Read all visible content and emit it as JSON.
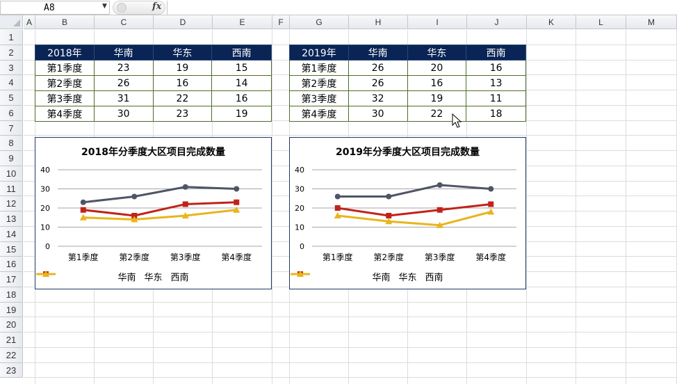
{
  "formula_bar": {
    "cell_ref": "A8",
    "fx": "fx",
    "content": ""
  },
  "columns": [
    "A",
    "B",
    "C",
    "D",
    "E",
    "F",
    "G",
    "H",
    "I",
    "J",
    "K",
    "L",
    "M"
  ],
  "rows": [
    "1",
    "2",
    "3",
    "4",
    "5",
    "6",
    "7",
    "8",
    "9",
    "10",
    "11",
    "12",
    "13",
    "14",
    "15",
    "16",
    "17",
    "18",
    "19",
    "20",
    "21",
    "22",
    "23"
  ],
  "table_2018": {
    "header": [
      "2018年",
      "华南",
      "华东",
      "西南"
    ],
    "rows": [
      [
        "第1季度",
        "23",
        "19",
        "15"
      ],
      [
        "第2季度",
        "26",
        "16",
        "14"
      ],
      [
        "第3季度",
        "31",
        "22",
        "16"
      ],
      [
        "第4季度",
        "30",
        "23",
        "19"
      ]
    ]
  },
  "table_2019": {
    "header": [
      "2019年",
      "华南",
      "华东",
      "西南"
    ],
    "rows": [
      [
        "第1季度",
        "26",
        "20",
        "16"
      ],
      [
        "第2季度",
        "26",
        "16",
        "13"
      ],
      [
        "第3季度",
        "32",
        "19",
        "11"
      ],
      [
        "第4季度",
        "30",
        "22",
        "18"
      ]
    ]
  },
  "chart_data": [
    {
      "type": "line",
      "title": "2018年分季度大区项目完成数量",
      "categories": [
        "第1季度",
        "第2季度",
        "第3季度",
        "第4季度"
      ],
      "series": [
        {
          "name": "华南",
          "values": [
            23,
            26,
            31,
            30
          ],
          "color": "#4f5565",
          "marker": "circle"
        },
        {
          "name": "华东",
          "values": [
            19,
            16,
            22,
            23
          ],
          "color": "#c0231b",
          "marker": "square"
        },
        {
          "name": "西南",
          "values": [
            15,
            14,
            16,
            19
          ],
          "color": "#e8b51c",
          "marker": "triangle"
        }
      ],
      "yticks": [
        "0",
        "10",
        "20",
        "30",
        "40"
      ],
      "ylim": [
        0,
        40
      ],
      "grid": true,
      "legend": "bottom"
    },
    {
      "type": "line",
      "title": "2019年分季度大区项目完成数量",
      "categories": [
        "第1季度",
        "第2季度",
        "第3季度",
        "第4季度"
      ],
      "series": [
        {
          "name": "华南",
          "values": [
            26,
            26,
            32,
            30
          ],
          "color": "#4f5565",
          "marker": "circle"
        },
        {
          "name": "华东",
          "values": [
            20,
            16,
            19,
            22
          ],
          "color": "#c0231b",
          "marker": "square"
        },
        {
          "name": "西南",
          "values": [
            16,
            13,
            11,
            18
          ],
          "color": "#e8b51c",
          "marker": "triangle"
        }
      ],
      "yticks": [
        "0",
        "10",
        "20",
        "30",
        "40"
      ],
      "ylim": [
        0,
        40
      ],
      "grid": true,
      "legend": "bottom"
    }
  ]
}
